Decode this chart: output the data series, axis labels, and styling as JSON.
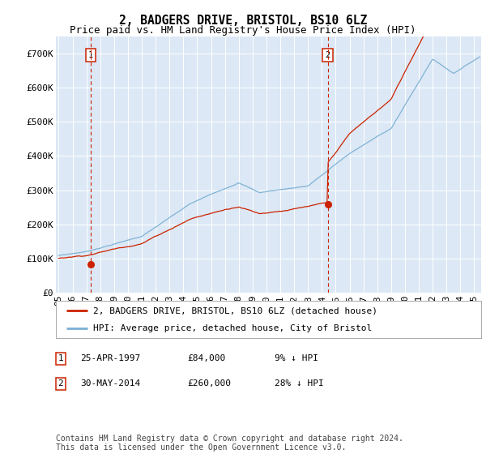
{
  "title": "2, BADGERS DRIVE, BRISTOL, BS10 6LZ",
  "subtitle": "Price paid vs. HM Land Registry's House Price Index (HPI)",
  "ylim": [
    0,
    750000
  ],
  "yticks": [
    0,
    100000,
    200000,
    300000,
    400000,
    500000,
    600000,
    700000
  ],
  "ytick_labels": [
    "£0",
    "£100K",
    "£200K",
    "£300K",
    "£400K",
    "£500K",
    "£600K",
    "£700K"
  ],
  "xlim_start": 1994.8,
  "xlim_end": 2025.5,
  "xtick_years": [
    1995,
    1996,
    1997,
    1998,
    1999,
    2000,
    2001,
    2002,
    2003,
    2004,
    2005,
    2006,
    2007,
    2008,
    2009,
    2010,
    2011,
    2012,
    2013,
    2014,
    2015,
    2016,
    2017,
    2018,
    2019,
    2020,
    2021,
    2022,
    2023,
    2024,
    2025
  ],
  "sale1_x": 1997.32,
  "sale1_y": 84000,
  "sale1_label": "1",
  "sale2_x": 2014.42,
  "sale2_y": 260000,
  "sale2_label": "2",
  "hpi_color": "#7ab0d4",
  "price_color": "#cc2200",
  "vline_color": "#cc2200",
  "figure_bg": "#ffffff",
  "plot_bg": "#dce8f5",
  "grid_color": "#ffffff",
  "legend_label_price": "2, BADGERS DRIVE, BRISTOL, BS10 6LZ (detached house)",
  "legend_label_hpi": "HPI: Average price, detached house, City of Bristol",
  "footer": "Contains HM Land Registry data © Crown copyright and database right 2024.\nThis data is licensed under the Open Government Licence v3.0.",
  "table_rows": [
    {
      "num": "1",
      "date": "25-APR-1997",
      "price": "£84,000",
      "hpi": "9% ↓ HPI"
    },
    {
      "num": "2",
      "date": "30-MAY-2014",
      "price": "£260,000",
      "hpi": "28% ↓ HPI"
    }
  ],
  "title_fontsize": 10.5,
  "subtitle_fontsize": 9,
  "tick_fontsize": 8,
  "legend_fontsize": 8,
  "footer_fontsize": 7
}
